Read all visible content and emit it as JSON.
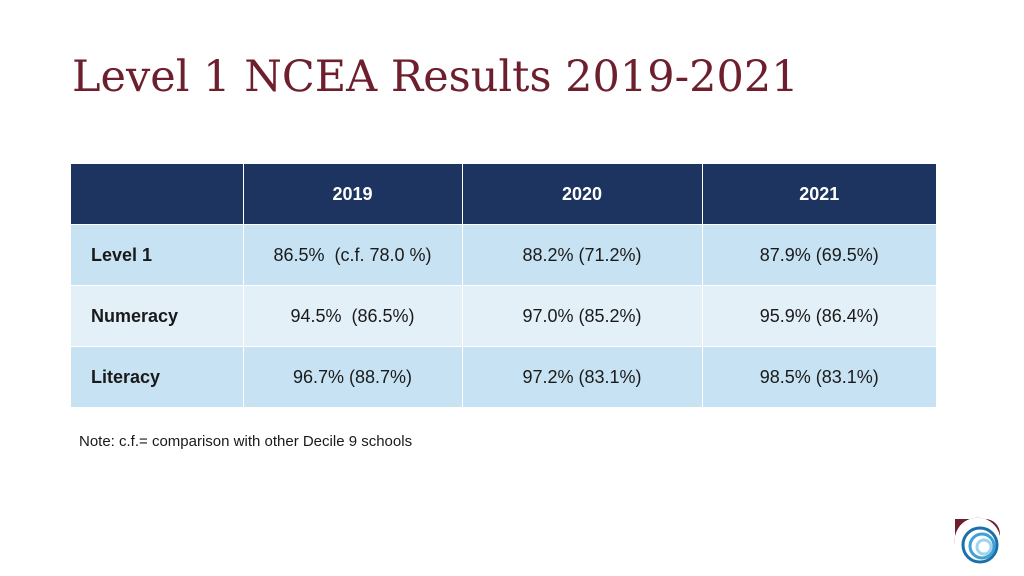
{
  "slide": {
    "title": "Level 1 NCEA Results 2019-2021",
    "note": "Note: c.f.= comparison with other Decile 9 schools"
  },
  "table": {
    "headers": [
      "",
      "2019",
      "2020",
      "2021"
    ],
    "rows": [
      {
        "label": "Level 1",
        "values": [
          "86.5%  (c.f. 78.0 %)",
          "88.2% (71.2%)",
          "87.9% (69.5%)"
        ]
      },
      {
        "label": "Numeracy",
        "values": [
          "94.5%  (86.5%)",
          "97.0% (85.2%)",
          "95.9% (86.4%)"
        ]
      },
      {
        "label": "Literacy",
        "values": [
          "96.7% (88.7%)",
          "97.2% (83.1%)",
          "98.5% (83.1%)"
        ]
      }
    ]
  },
  "colors": {
    "title": "#6e1f2e",
    "header_bg": "#1d3461",
    "row_dark": "#c7e3f3",
    "row_light": "#e3f0f8"
  },
  "logo": {
    "icon": "school-logo-icon"
  }
}
